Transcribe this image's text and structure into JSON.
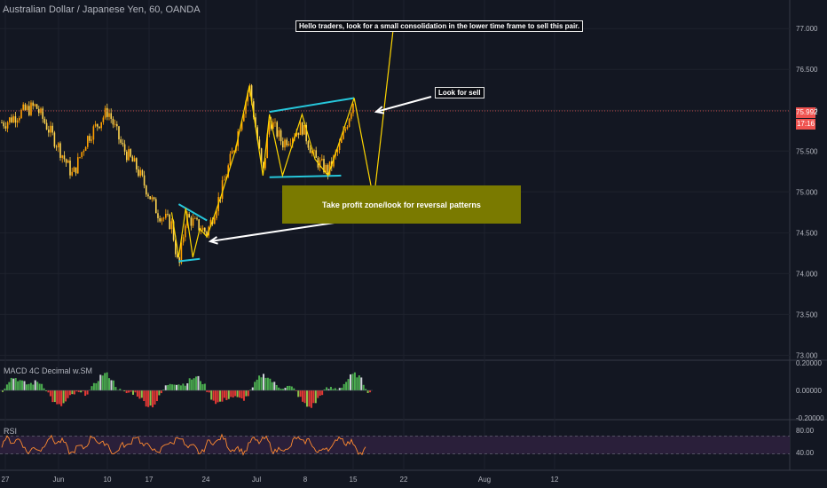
{
  "header": {
    "title": "Australian Dollar / Japanese Yen, 60, OANDA"
  },
  "current_price": {
    "value": "75.992",
    "countdown": "17:16",
    "color": "#ef5350"
  },
  "annotations": {
    "main": "Hello traders, look for a small consolidation in the lower time frame to sell this pair.",
    "sell": "Look for sell",
    "zone": "Take profit zone/look for reversal patterns"
  },
  "colors": {
    "background": "#131722",
    "candle_up": "#ffa000",
    "candle_down": "#ffd54f",
    "pattern_line": "#26c6da",
    "projection_line": "#ffd600",
    "arrow": "#ffffff",
    "zone": "#7a7a00",
    "rsi_line": "#ff8a30",
    "rsi_band": "#2a1f3a",
    "macd_pos": "#4caf50",
    "macd_neg": "#e53935"
  },
  "indicators": {
    "macd": {
      "label": "MACD 4C Decimal w.SM",
      "ticks": [
        "0.20000",
        "0.00000",
        "-0.20000"
      ]
    },
    "rsi": {
      "label": "RSI",
      "ticks": [
        "80.00",
        "40.00"
      ],
      "upper": 70,
      "lower": 30
    }
  },
  "chart_data": {
    "type": "candlestick",
    "title": "Australian Dollar / Japanese Yen, 60, OANDA",
    "ylim": [
      72.95,
      77.35
    ],
    "y_ticks": [
      "77.000",
      "76.500",
      "76.000",
      "75.500",
      "75.000",
      "74.500",
      "74.000",
      "73.500",
      "73.000"
    ],
    "x_ticks": [
      "27",
      "Jun",
      "10",
      "17",
      "24",
      "Jul",
      "8",
      "15",
      "22",
      "Aug",
      "12"
    ],
    "last_price": 75.992,
    "price_path": [
      [
        "May 27",
        75.85
      ],
      [
        "May 29",
        75.97
      ],
      [
        "May 31",
        76.05
      ],
      [
        "Jun 3",
        75.55
      ],
      [
        "Jun 5",
        75.2
      ],
      [
        "Jun 7",
        75.65
      ],
      [
        "Jun 10",
        76.0
      ],
      [
        "Jun 12",
        75.55
      ],
      [
        "Jun 14",
        75.3
      ],
      [
        "Jun 17",
        74.75
      ],
      [
        "Jun 19",
        74.6
      ],
      [
        "Jun 20",
        74.05
      ],
      [
        "Jun 21",
        74.7
      ],
      [
        "Jun 24",
        74.5
      ],
      [
        "Jun 26",
        75.0
      ],
      [
        "Jun 28",
        75.6
      ],
      [
        "Jun 30",
        76.3
      ],
      [
        "Jul 2",
        75.2
      ],
      [
        "Jul 3",
        75.9
      ],
      [
        "Jul 5",
        75.6
      ],
      [
        "Jul 8",
        75.8
      ],
      [
        "Jul 10",
        75.4
      ],
      [
        "Jul 12",
        75.25
      ],
      [
        "Jul 14",
        75.6
      ],
      [
        "Jul 16",
        76.15
      ]
    ],
    "projection": [
      [
        "Jul 16",
        76.15
      ],
      [
        "Jul 19",
        74.9
      ],
      [
        "Jul 22",
        77.0
      ]
    ],
    "take_profit_zone": [
      74.6,
      75.05
    ]
  }
}
